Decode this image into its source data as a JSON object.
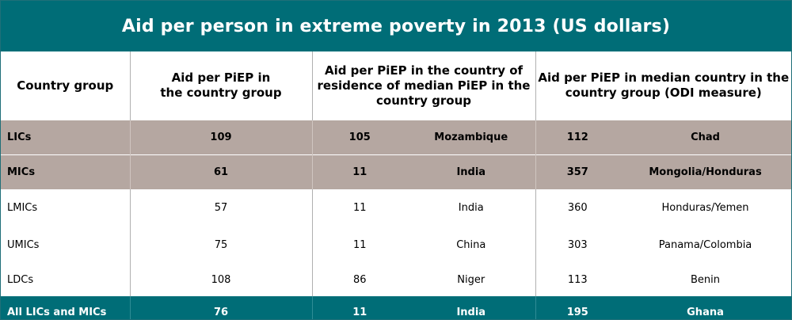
{
  "title": "Aid per person in extreme poverty in 2013 (US dollars)",
  "headers": {
    "group": "Country group",
    "aid": "Aid per PiEP in\nthe country group",
    "median_res": "Aid per PiEP in the country of\nresidence of median PiEP in the\ncountry group",
    "median_country": "Aid per PiEP in median country in the\ncountry group (ODI measure)"
  },
  "rows": [
    {
      "group": "LICs",
      "aid": "109",
      "res_value": "105",
      "res_country": "Mozambique",
      "odi_value": "112",
      "odi_country": "Chad"
    },
    {
      "group": "MICs",
      "aid": "61",
      "res_value": "11",
      "res_country": "India",
      "odi_value": "357",
      "odi_country": "Mongolia/Honduras"
    },
    {
      "group": "LMICs",
      "aid": "57",
      "res_value": "11",
      "res_country": "India",
      "odi_value": "360",
      "odi_country": "Honduras/Yemen"
    },
    {
      "group": "UMICs",
      "aid": "75",
      "res_value": "11",
      "res_country": "China",
      "odi_value": "303",
      "odi_country": "Panama/Colombia"
    },
    {
      "group": "LDCs",
      "aid": "108",
      "res_value": "86",
      "res_country": "Niger",
      "odi_value": "113",
      "odi_country": "Benin"
    },
    {
      "group": "All LICs and MICs",
      "aid": "76",
      "res_value": "11",
      "res_country": "India",
      "odi_value": "195",
      "odi_country": "Ghana"
    }
  ],
  "colors": {
    "teal": "#006d77",
    "taupe": "#b5a7a1"
  }
}
